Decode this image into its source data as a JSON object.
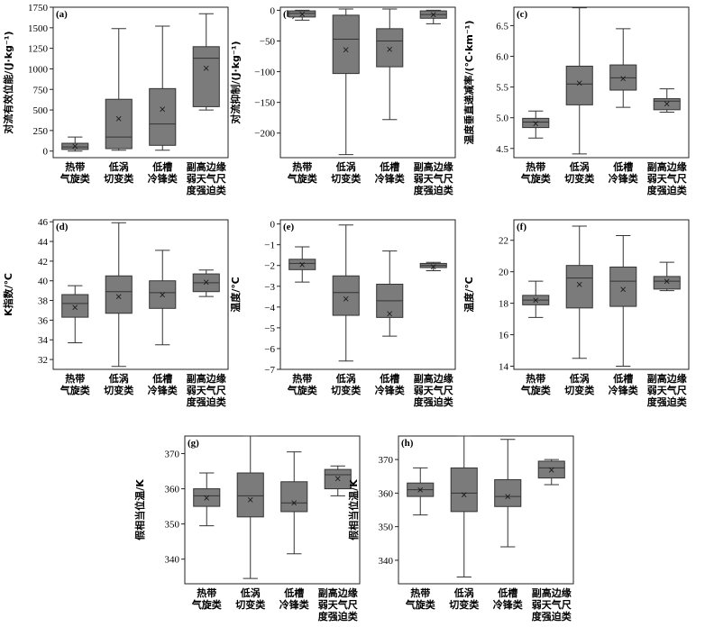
{
  "figure": {
    "categories": [
      "热带\n气旋类",
      "低涡\n切变类",
      "低槽\n冷锋类",
      "副高边缘\n弱天气尺\n度强迫类"
    ],
    "box_color": "#7b7b7b",
    "edge_color": "#333333"
  },
  "chart_data": [
    {
      "type": "box",
      "panel_label": "(a)",
      "ylabel": "对流有效位能/(J·kg⁻¹)",
      "ylim": [
        -80,
        1750
      ],
      "yticks": [
        "0",
        "250",
        "500",
        "750",
        "1000",
        "1250",
        "1500",
        "1750"
      ],
      "tick_values": [
        0,
        250,
        500,
        750,
        1000,
        1250,
        1500,
        1750
      ],
      "boxes": [
        {
          "min": 0,
          "q1": 20,
          "median": 50,
          "q3": 95,
          "max": 170,
          "mean": 60
        },
        {
          "min": 10,
          "q1": 30,
          "median": 170,
          "q3": 630,
          "max": 1490,
          "mean": 395
        },
        {
          "min": 10,
          "q1": 70,
          "median": 330,
          "q3": 760,
          "max": 1520,
          "mean": 510
        },
        {
          "min": 500,
          "q1": 540,
          "median": 1130,
          "q3": 1270,
          "max": 1670,
          "mean": 1010
        }
      ]
    },
    {
      "type": "box",
      "panel_label": "(b)",
      "ylabel": "对流抑制/(J·kg⁻¹)",
      "ylim": [
        -240,
        5
      ],
      "yticks": [
        "0",
        "−50",
        "−100",
        "−150",
        "−200"
      ],
      "tick_values": [
        0,
        -50,
        -100,
        -150,
        -200
      ],
      "boxes": [
        {
          "min": -16,
          "q1": -11,
          "median": -5,
          "q3": -1,
          "max": 0,
          "mean": -6
        },
        {
          "min": -235,
          "q1": -103,
          "median": -47,
          "q3": -8,
          "max": 2,
          "mean": -64
        },
        {
          "min": -178,
          "q1": -92,
          "median": -50,
          "q3": -30,
          "max": 2,
          "mean": -63
        },
        {
          "min": -22,
          "q1": -13,
          "median": -7,
          "q3": -1,
          "max": 0,
          "mean": -7
        }
      ]
    },
    {
      "type": "box",
      "panel_label": "(c)",
      "ylabel": "温度垂直递减率/(℃·km⁻¹)",
      "ylim": [
        4.35,
        6.8
      ],
      "yticks": [
        "4.5",
        "5.0",
        "5.5",
        "6.0",
        "6.5"
      ],
      "tick_values": [
        4.5,
        5.0,
        5.5,
        6.0,
        6.5
      ],
      "boxes": [
        {
          "min": 4.67,
          "q1": 4.84,
          "median": 4.93,
          "q3": 4.99,
          "max": 5.11,
          "mean": 4.91
        },
        {
          "min": 4.41,
          "q1": 5.21,
          "median": 5.55,
          "q3": 5.84,
          "max": 6.79,
          "mean": 5.57
        },
        {
          "min": 5.17,
          "q1": 5.45,
          "median": 5.65,
          "q3": 5.86,
          "max": 6.45,
          "mean": 5.64
        },
        {
          "min": 5.09,
          "q1": 5.13,
          "median": 5.27,
          "q3": 5.31,
          "max": 5.47,
          "mean": 5.23
        }
      ]
    },
    {
      "type": "box",
      "panel_label": "(d)",
      "ylabel": "K指数/℃",
      "ylim": [
        31,
        46.2
      ],
      "yticks": [
        "32",
        "34",
        "36",
        "38",
        "40",
        "42",
        "44",
        "46"
      ],
      "tick_values": [
        32,
        34,
        36,
        38,
        40,
        42,
        44,
        46
      ],
      "boxes": [
        {
          "min": 33.7,
          "q1": 36.3,
          "median": 37.7,
          "q3": 38.6,
          "max": 39.5,
          "mean": 37.3
        },
        {
          "min": 31.3,
          "q1": 36.7,
          "median": 38.9,
          "q3": 40.5,
          "max": 45.9,
          "mean": 38.4
        },
        {
          "min": 33.5,
          "q1": 37.2,
          "median": 38.8,
          "q3": 40.0,
          "max": 43.1,
          "mean": 38.6
        },
        {
          "min": 38.4,
          "q1": 38.9,
          "median": 39.8,
          "q3": 40.7,
          "max": 41.1,
          "mean": 39.9
        }
      ]
    },
    {
      "type": "box",
      "panel_label": "(e)",
      "ylabel": "温度/℃",
      "ylim": [
        -7,
        0.2
      ],
      "yticks": [
        "0",
        "−1",
        "−2",
        "−3",
        "−4",
        "−5",
        "−6",
        "−7"
      ],
      "tick_values": [
        0,
        -1,
        -2,
        -3,
        -4,
        -5,
        -6,
        -7
      ],
      "boxes": [
        {
          "min": -2.8,
          "q1": -2.2,
          "median": -1.9,
          "q3": -1.7,
          "max": -1.1,
          "mean": -1.95
        },
        {
          "min": -6.6,
          "q1": -4.4,
          "median": -3.3,
          "q3": -2.5,
          "max": -0.05,
          "mean": -3.6
        },
        {
          "min": -5.4,
          "q1": -4.5,
          "median": -3.7,
          "q3": -2.9,
          "max": -1.3,
          "mean": -4.3
        },
        {
          "min": -2.25,
          "q1": -2.1,
          "median": -2.0,
          "q3": -1.9,
          "max": -1.85,
          "mean": -2.05
        }
      ]
    },
    {
      "type": "box",
      "panel_label": "(f)",
      "ylabel": "温度/℃",
      "ylim": [
        13.8,
        23.3
      ],
      "yticks": [
        "14",
        "16",
        "18",
        "20",
        "22"
      ],
      "tick_values": [
        14,
        16,
        18,
        20,
        22
      ],
      "boxes": [
        {
          "min": 17.1,
          "q1": 17.9,
          "median": 18.2,
          "q3": 18.5,
          "max": 19.4,
          "mean": 18.2
        },
        {
          "min": 14.5,
          "q1": 17.7,
          "median": 19.6,
          "q3": 20.4,
          "max": 22.9,
          "mean": 19.2
        },
        {
          "min": 14.0,
          "q1": 17.8,
          "median": 19.4,
          "q3": 20.3,
          "max": 22.3,
          "mean": 18.9
        },
        {
          "min": 18.8,
          "q1": 18.9,
          "median": 19.4,
          "q3": 19.7,
          "max": 20.6,
          "mean": 19.4
        }
      ]
    },
    {
      "type": "box",
      "panel_label": "(g)",
      "ylabel": "假相当位温/K",
      "ylim": [
        333,
        375
      ],
      "yticks": [
        "340",
        "350",
        "360",
        "370"
      ],
      "tick_values": [
        340,
        350,
        360,
        370
      ],
      "boxes": [
        {
          "min": 349.5,
          "q1": 355,
          "median": 358,
          "q3": 360,
          "max": 364.5,
          "mean": 357.5
        },
        {
          "min": 334.5,
          "q1": 352,
          "median": 358,
          "q3": 364.5,
          "max": 375,
          "mean": 357
        },
        {
          "min": 341.5,
          "q1": 353.5,
          "median": 356,
          "q3": 362,
          "max": 370.5,
          "mean": 356
        },
        {
          "min": 358,
          "q1": 360,
          "median": 364,
          "q3": 365.5,
          "max": 366.5,
          "mean": 363
        }
      ]
    },
    {
      "type": "box",
      "panel_label": "(h)",
      "ylabel": "假相当位温/K",
      "ylim": [
        333,
        377
      ],
      "yticks": [
        "340",
        "350",
        "360",
        "370"
      ],
      "tick_values": [
        340,
        350,
        360,
        370
      ],
      "boxes": [
        {
          "min": 353.5,
          "q1": 359,
          "median": 361,
          "q3": 363,
          "max": 367.5,
          "mean": 361
        },
        {
          "min": 335,
          "q1": 354.5,
          "median": 360,
          "q3": 367.5,
          "max": 377,
          "mean": 359.5
        },
        {
          "min": 344,
          "q1": 356,
          "median": 359,
          "q3": 364,
          "max": 376,
          "mean": 359
        },
        {
          "min": 362.5,
          "q1": 364.5,
          "median": 367.5,
          "q3": 369.5,
          "max": 370,
          "mean": 367
        }
      ]
    }
  ]
}
